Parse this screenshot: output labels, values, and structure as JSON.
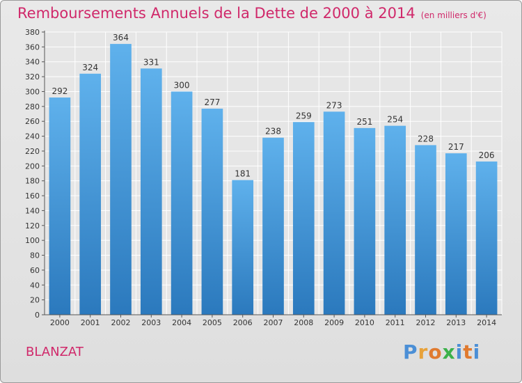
{
  "header": {
    "title": "Remboursements Annuels de la Dette de 2000 à 2014",
    "unit": "(en milliers d'€)"
  },
  "footer": {
    "city": "BLANZAT",
    "logo": {
      "letters": [
        "P",
        "r",
        "o",
        "x",
        "i",
        "t",
        "i"
      ]
    }
  },
  "colors": {
    "title": "#d0286a",
    "bar_top": "#5fb1ec",
    "bar_bottom": "#2b79bd",
    "logo_letters": [
      "#4b8fd6",
      "#e8a23a",
      "#e07a2f",
      "#3bb14a",
      "#4b8fd6",
      "#e07a2f",
      "#4b8fd6"
    ]
  },
  "chart_data": {
    "type": "bar",
    "title": "Remboursements Annuels de la Dette de 2000 à 2014",
    "ylabel": "en milliers d'€",
    "xlabel": "",
    "categories": [
      "2000",
      "2001",
      "2002",
      "2003",
      "2004",
      "2005",
      "2006",
      "2007",
      "2008",
      "2009",
      "2010",
      "2011",
      "2012",
      "2013",
      "2014"
    ],
    "values": [
      292,
      324,
      364,
      331,
      300,
      277,
      181,
      238,
      259,
      273,
      251,
      254,
      228,
      217,
      206
    ],
    "ylim": [
      0,
      380
    ],
    "ytick_step": 20,
    "grid": true
  }
}
